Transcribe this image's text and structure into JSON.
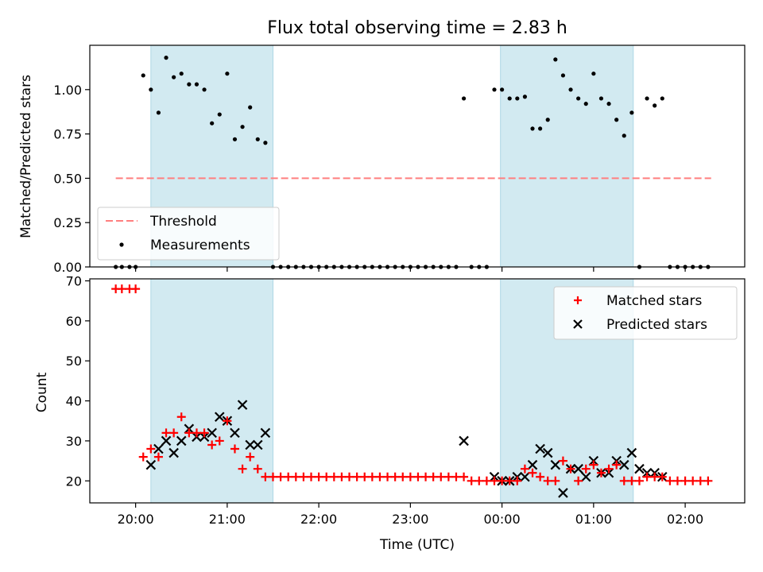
{
  "chart_data": {
    "title": "Flux total observing time = 2.83 h",
    "xlabel": "Time (UTC)",
    "x_ticks": [
      "20:00",
      "21:00",
      "22:00",
      "23:00",
      "00:00",
      "01:00",
      "02:00"
    ],
    "colors": {
      "threshold": "#ff7f7f",
      "measurements": "#000000",
      "matched": "#ff0000",
      "predicted": "#000000",
      "shade": "#add8e6"
    },
    "shaded_intervals": [
      [
        "20:10",
        "21:30"
      ],
      [
        "23:59",
        "01:26"
      ]
    ],
    "panels": [
      {
        "type": "scatter",
        "ylabel": "Matched/Predicted stars",
        "ylim": [
          0,
          1.25
        ],
        "yticks": [
          "0.00",
          "0.25",
          "0.50",
          "0.75",
          "1.00"
        ],
        "legend": {
          "placement": "lower-left",
          "entries": [
            "Threshold",
            "Measurements"
          ]
        },
        "threshold": {
          "name": "Threshold",
          "value": 0.5,
          "x_range": [
            "19:47",
            "02:17"
          ]
        },
        "series": [
          {
            "name": "Measurements",
            "x": [
              "19:47",
              "19:51",
              "19:56",
              "20:00",
              "20:05",
              "20:10",
              "20:15",
              "20:20",
              "20:25",
              "20:30",
              "20:35",
              "20:40",
              "20:45",
              "20:50",
              "20:55",
              "21:00",
              "21:05",
              "21:10",
              "21:15",
              "21:20",
              "21:25",
              "21:30",
              "21:35",
              "21:40",
              "21:45",
              "21:50",
              "21:55",
              "22:00",
              "22:05",
              "22:10",
              "22:15",
              "22:20",
              "22:25",
              "22:30",
              "22:35",
              "22:40",
              "22:45",
              "22:50",
              "22:55",
              "23:00",
              "23:05",
              "23:10",
              "23:15",
              "23:20",
              "23:25",
              "23:30",
              "23:35",
              "23:40",
              "23:45",
              "23:50",
              "23:55",
              "00:00",
              "00:05",
              "00:10",
              "00:15",
              "00:20",
              "00:25",
              "00:30",
              "00:35",
              "00:40",
              "00:45",
              "00:50",
              "00:55",
              "01:00",
              "01:05",
              "01:10",
              "01:15",
              "01:20",
              "01:25",
              "01:30",
              "01:35",
              "01:40",
              "01:45",
              "01:50",
              "01:55",
              "02:00",
              "02:05",
              "02:10",
              "02:15"
            ],
            "y": [
              0,
              0,
              0,
              0,
              1.08,
              1.0,
              0.87,
              1.18,
              1.07,
              1.09,
              1.03,
              1.03,
              1.0,
              0.81,
              0.86,
              1.09,
              0.72,
              0.79,
              0.9,
              0.72,
              0.7,
              0,
              0,
              0,
              0,
              0,
              0,
              0,
              0,
              0,
              0,
              0,
              0,
              0,
              0,
              0,
              0,
              0,
              0,
              0,
              0,
              0,
              0,
              0,
              0,
              0,
              0.95,
              0,
              0,
              0,
              1.0,
              1.0,
              0.95,
              0.95,
              0.96,
              0.78,
              0.78,
              0.83,
              1.17,
              1.08,
              1.0,
              0.95,
              0.92,
              1.09,
              0.95,
              0.92,
              0.83,
              0.74,
              0.87,
              0,
              0.95,
              0.91,
              0.95,
              0,
              0,
              0,
              0,
              0,
              0
            ]
          }
        ]
      },
      {
        "type": "scatter",
        "ylabel": "Count",
        "ylim": [
          14.5,
          70.5
        ],
        "yticks": [
          "20",
          "30",
          "40",
          "50",
          "60",
          "70"
        ],
        "legend": {
          "placement": "top-right",
          "entries": [
            "Matched stars",
            "Predicted stars"
          ]
        },
        "series": [
          {
            "name": "Matched stars",
            "marker": "+",
            "x": [
              "19:47",
              "19:51",
              "19:56",
              "20:00",
              "20:05",
              "20:10",
              "20:15",
              "20:20",
              "20:25",
              "20:30",
              "20:35",
              "20:40",
              "20:45",
              "20:50",
              "20:55",
              "21:00",
              "21:05",
              "21:10",
              "21:15",
              "21:20",
              "21:25",
              "21:30",
              "21:35",
              "21:40",
              "21:45",
              "21:50",
              "21:55",
              "22:00",
              "22:05",
              "22:10",
              "22:15",
              "22:20",
              "22:25",
              "22:30",
              "22:35",
              "22:40",
              "22:45",
              "22:50",
              "22:55",
              "23:00",
              "23:05",
              "23:10",
              "23:15",
              "23:20",
              "23:25",
              "23:30",
              "23:35",
              "23:40",
              "23:45",
              "23:50",
              "23:55",
              "00:00",
              "00:05",
              "00:10",
              "00:15",
              "00:20",
              "00:25",
              "00:30",
              "00:35",
              "00:40",
              "00:45",
              "00:50",
              "00:55",
              "01:00",
              "01:05",
              "01:10",
              "01:15",
              "01:20",
              "01:25",
              "01:30",
              "01:35",
              "01:40",
              "01:45",
              "01:50",
              "01:55",
              "02:00",
              "02:05",
              "02:10",
              "02:15"
            ],
            "y": [
              68,
              68,
              68,
              68,
              26,
              28,
              26,
              32,
              32,
              36,
              32,
              32,
              32,
              29,
              30,
              35,
              28,
              23,
              26,
              23,
              21,
              21,
              21,
              21,
              21,
              21,
              21,
              21,
              21,
              21,
              21,
              21,
              21,
              21,
              21,
              21,
              21,
              21,
              21,
              21,
              21,
              21,
              21,
              21,
              21,
              21,
              21,
              20,
              20,
              20,
              20,
              20,
              20,
              20,
              23,
              22,
              21,
              20,
              20,
              25,
              23,
              20,
              23,
              24,
              22,
              23,
              24,
              20,
              20,
              20,
              21,
              21,
              21,
              20,
              20,
              20,
              20,
              20,
              20
            ]
          },
          {
            "name": "Predicted stars",
            "marker": "x",
            "x": [
              "20:10",
              "20:15",
              "20:20",
              "20:25",
              "20:30",
              "20:35",
              "20:40",
              "20:45",
              "20:50",
              "20:55",
              "21:00",
              "21:05",
              "21:10",
              "21:15",
              "21:20",
              "21:25",
              "23:35",
              "23:55",
              "00:00",
              "00:05",
              "00:10",
              "00:15",
              "00:20",
              "00:25",
              "00:30",
              "00:35",
              "00:40",
              "00:45",
              "00:50",
              "00:55",
              "01:00",
              "01:05",
              "01:10",
              "01:15",
              "01:20",
              "01:25",
              "01:30",
              "01:35",
              "01:40",
              "01:45"
            ],
            "y": [
              24,
              28,
              30,
              27,
              30,
              33,
              31,
              31,
              32,
              36,
              35,
              32,
              39,
              29,
              29,
              32,
              30,
              21,
              20,
              20,
              21,
              21,
              24,
              28,
              27,
              24,
              17,
              23,
              23,
              21,
              25,
              22,
              22,
              25,
              24,
              27,
              23,
              22,
              22,
              21
            ]
          }
        ]
      }
    ]
  }
}
